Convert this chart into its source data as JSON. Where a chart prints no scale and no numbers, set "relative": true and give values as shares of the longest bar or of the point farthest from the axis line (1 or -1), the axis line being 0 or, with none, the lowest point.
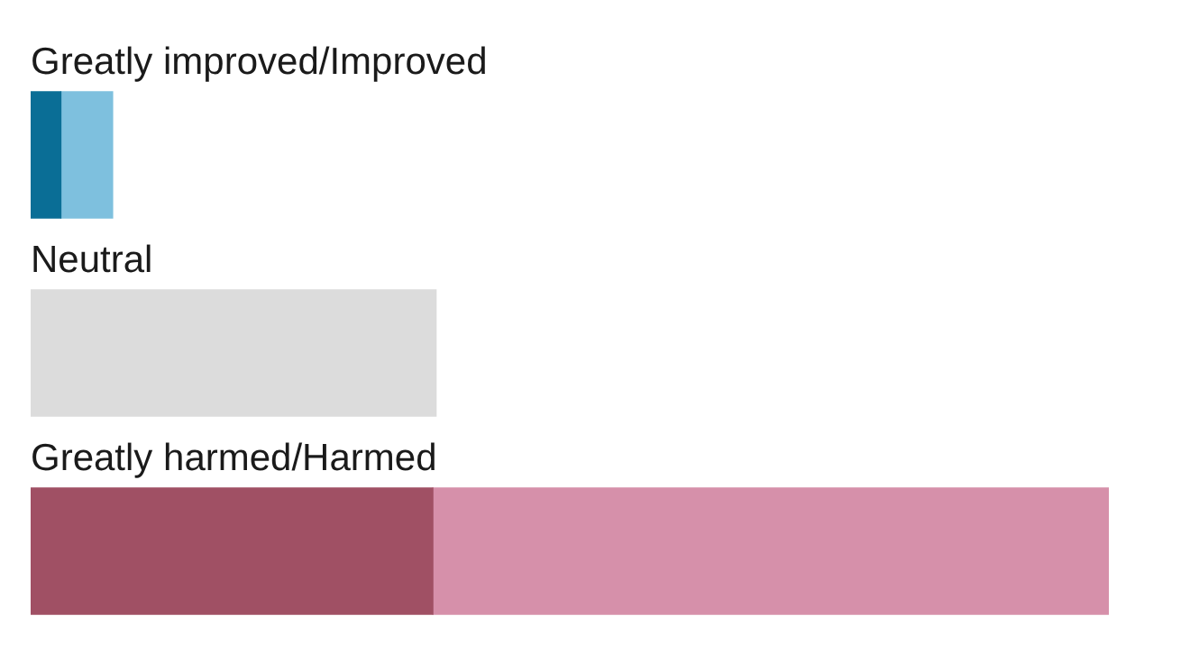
{
  "chart_data": {
    "type": "bar",
    "orientation": "horizontal",
    "stacked": true,
    "relative": true,
    "legend": false,
    "categories": [
      "Greatly improved/Improved",
      "Neutral",
      "Greatly harmed/Harmed"
    ],
    "series": [
      {
        "colors": [
          "#0a6e96",
          "#dcdcdc",
          "#a05064"
        ],
        "values": [
          0.028,
          0.376,
          0.373
        ]
      },
      {
        "colors": [
          "#7ec0de",
          "#dcdcdc",
          "#d690aa"
        ],
        "values": [
          0.048,
          null,
          0.627
        ]
      }
    ]
  }
}
